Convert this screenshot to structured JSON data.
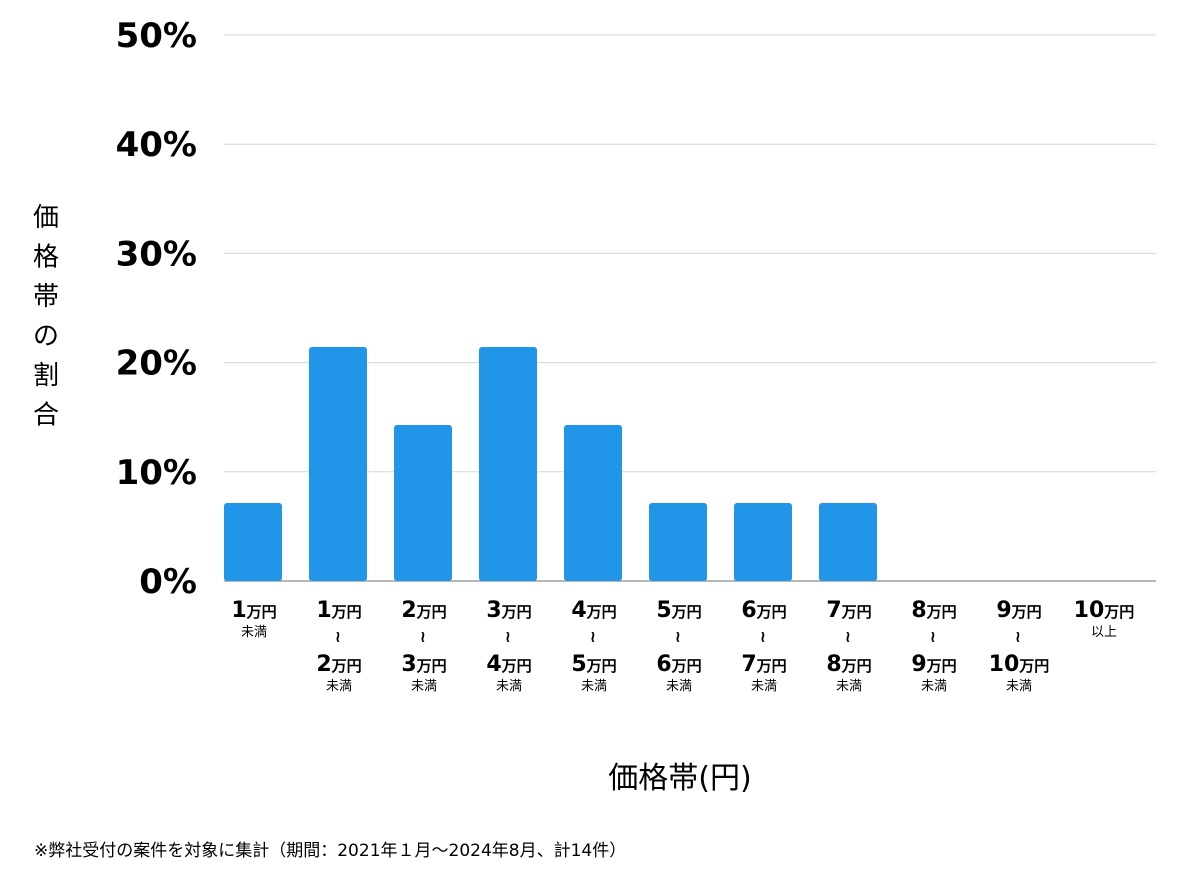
{
  "chart_data": {
    "type": "bar",
    "ylabel": "価格帯の割合",
    "xlabel": "価格帯(円)",
    "ylim": [
      0,
      50
    ],
    "yticks": [
      "0%",
      "10%",
      "20%",
      "30%",
      "40%",
      "50%"
    ],
    "ytick_values": [
      0,
      10,
      20,
      30,
      40,
      50
    ],
    "grid": true,
    "bar_color": "#2196e8",
    "categories": [
      {
        "from": "1万円",
        "to": "",
        "suffix": "未満"
      },
      {
        "from": "1万円",
        "to": "2万円",
        "suffix": "未満"
      },
      {
        "from": "2万円",
        "to": "3万円",
        "suffix": "未満"
      },
      {
        "from": "3万円",
        "to": "4万円",
        "suffix": "未満"
      },
      {
        "from": "4万円",
        "to": "5万円",
        "suffix": "未満"
      },
      {
        "from": "5万円",
        "to": "6万円",
        "suffix": "未満"
      },
      {
        "from": "6万円",
        "to": "7万円",
        "suffix": "未満"
      },
      {
        "from": "7万円",
        "to": "8万円",
        "suffix": "未満"
      },
      {
        "from": "8万円",
        "to": "9万円",
        "suffix": "未満"
      },
      {
        "from": "9万円",
        "to": "10万円",
        "suffix": "未満"
      },
      {
        "from": "10万円",
        "to": "",
        "suffix": "以上"
      }
    ],
    "range_symbol": "~",
    "values": [
      7.14,
      21.43,
      14.29,
      21.43,
      14.29,
      7.14,
      7.14,
      7.14,
      0,
      0,
      0
    ]
  },
  "footnote": "※弊社受付の案件を対象に集計（期間：2021年１月〜2024年8月、計14件）"
}
